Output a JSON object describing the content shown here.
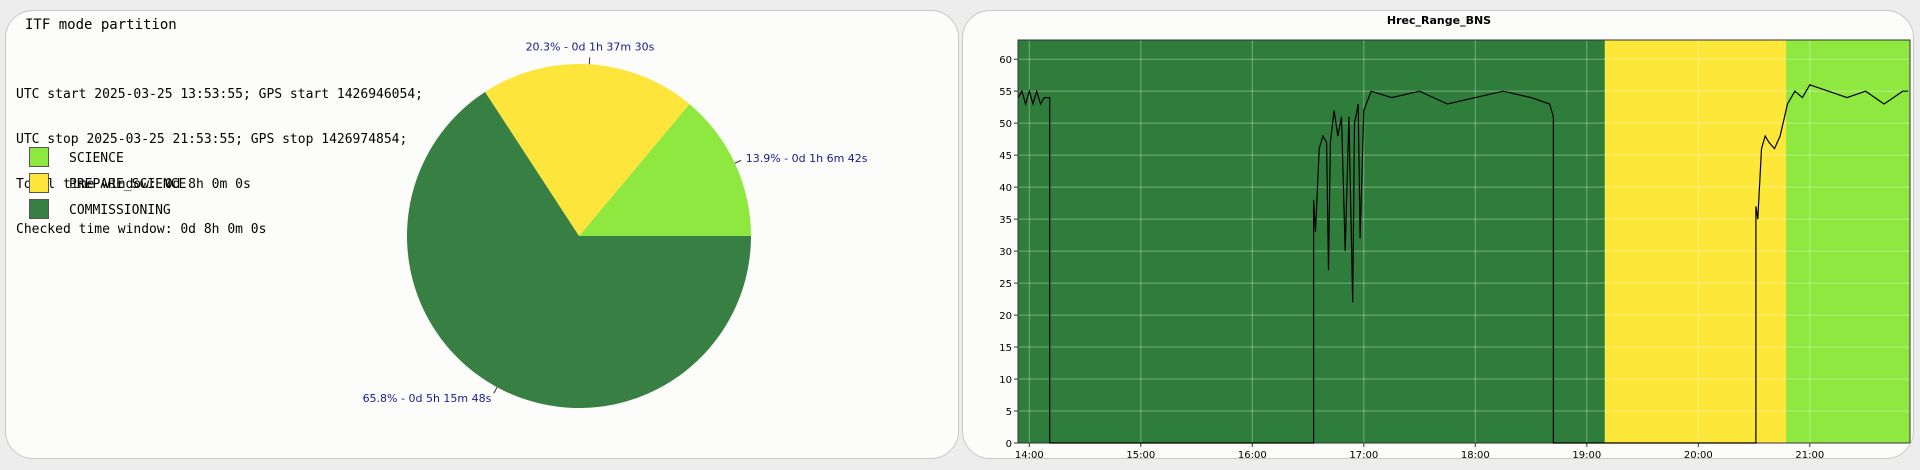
{
  "left_panel": {
    "title": "ITF mode partition",
    "info_lines": [
      "UTC start 2025-03-25 13:53:55; GPS start 1426946054;",
      "UTC stop 2025-03-25 21:53:55; GPS stop 1426974854;",
      "Total time window: 0d 8h 0m 0s",
      "Checked time window: 0d 8h 0m 0s"
    ],
    "legend": [
      {
        "label": "SCIENCE",
        "color": "#8fe83f"
      },
      {
        "label": "PREPARE_SCIENCE",
        "color": "#fde53c"
      },
      {
        "label": "COMMISSIONING",
        "color": "#377f43"
      }
    ]
  },
  "chart_data": [
    {
      "type": "pie",
      "title": "",
      "slices": [
        {
          "name": "SCIENCE",
          "percent": 13.9,
          "label": "13.9% - 0d 1h 6m 42s",
          "color": "#8fe83f"
        },
        {
          "name": "PREPARE_SCIENCE",
          "percent": 20.3,
          "label": "20.3% - 0d 1h 37m 30s",
          "color": "#fde53c"
        },
        {
          "name": "COMMISSIONING",
          "percent": 65.8,
          "label": "65.8% - 0d 5h 15m 48s",
          "color": "#377f43"
        }
      ]
    },
    {
      "type": "line",
      "title": "Hrec_Range_BNS",
      "xlabel": "",
      "ylabel": "",
      "x_range": [
        "13:53:55",
        "21:53:55"
      ],
      "xticks": [
        "14:00",
        "15:00",
        "16:00",
        "17:00",
        "18:00",
        "19:00",
        "20:00",
        "21:00"
      ],
      "ylim": [
        0,
        63
      ],
      "yticks": [
        0,
        5,
        10,
        15,
        20,
        25,
        30,
        35,
        40,
        45,
        50,
        55,
        60
      ],
      "grid": true,
      "background_bands": [
        {
          "mode": "COMMISSIONING",
          "start": "13:53:55",
          "end": "19:09:43",
          "color": "#2e7d3a"
        },
        {
          "mode": "PREPARE_SCIENCE",
          "start": "19:09:43",
          "end": "20:47:13",
          "color": "#fde83a"
        },
        {
          "mode": "SCIENCE",
          "start": "20:47:13",
          "end": "21:53:55",
          "color": "#8fe83f"
        }
      ],
      "series": [
        {
          "color": "#000000",
          "points": [
            [
              "13:54",
              54
            ],
            [
              "13:56",
              55
            ],
            [
              "13:58",
              53
            ],
            [
              "14:00",
              55
            ],
            [
              "14:02",
              53
            ],
            [
              "14:04",
              55
            ],
            [
              "14:06",
              53
            ],
            [
              "14:08",
              54
            ],
            [
              "14:11",
              54
            ],
            [
              "14:11",
              0
            ],
            [
              "16:33",
              0
            ],
            [
              "16:33",
              38
            ],
            [
              "16:34",
              33
            ],
            [
              "16:36",
              46
            ],
            [
              "16:38",
              48
            ],
            [
              "16:40",
              47
            ],
            [
              "16:41",
              27
            ],
            [
              "16:42",
              47
            ],
            [
              "16:44",
              52
            ],
            [
              "16:46",
              48
            ],
            [
              "16:48",
              51
            ],
            [
              "16:50",
              30
            ],
            [
              "16:52",
              51
            ],
            [
              "16:54",
              22
            ],
            [
              "16:55",
              50
            ],
            [
              "16:57",
              53
            ],
            [
              "16:58",
              32
            ],
            [
              "17:00",
              52
            ],
            [
              "17:04",
              55
            ],
            [
              "17:15",
              54
            ],
            [
              "17:30",
              55
            ],
            [
              "17:45",
              53
            ],
            [
              "18:00",
              54
            ],
            [
              "18:15",
              55
            ],
            [
              "18:30",
              54
            ],
            [
              "18:40",
              53
            ],
            [
              "18:42",
              51
            ],
            [
              "18:42",
              0
            ],
            [
              "20:31",
              0
            ],
            [
              "20:31",
              37
            ],
            [
              "20:32",
              35
            ],
            [
              "20:34",
              46
            ],
            [
              "20:36",
              48
            ],
            [
              "20:38",
              47
            ],
            [
              "20:41",
              46
            ],
            [
              "20:44",
              48
            ],
            [
              "20:48",
              53
            ],
            [
              "20:52",
              55
            ],
            [
              "20:56",
              54
            ],
            [
              "21:00",
              56
            ],
            [
              "21:10",
              55
            ],
            [
              "21:20",
              54
            ],
            [
              "21:30",
              55
            ],
            [
              "21:40",
              53
            ],
            [
              "21:50",
              55
            ],
            [
              "21:53",
              55
            ]
          ]
        }
      ]
    }
  ]
}
